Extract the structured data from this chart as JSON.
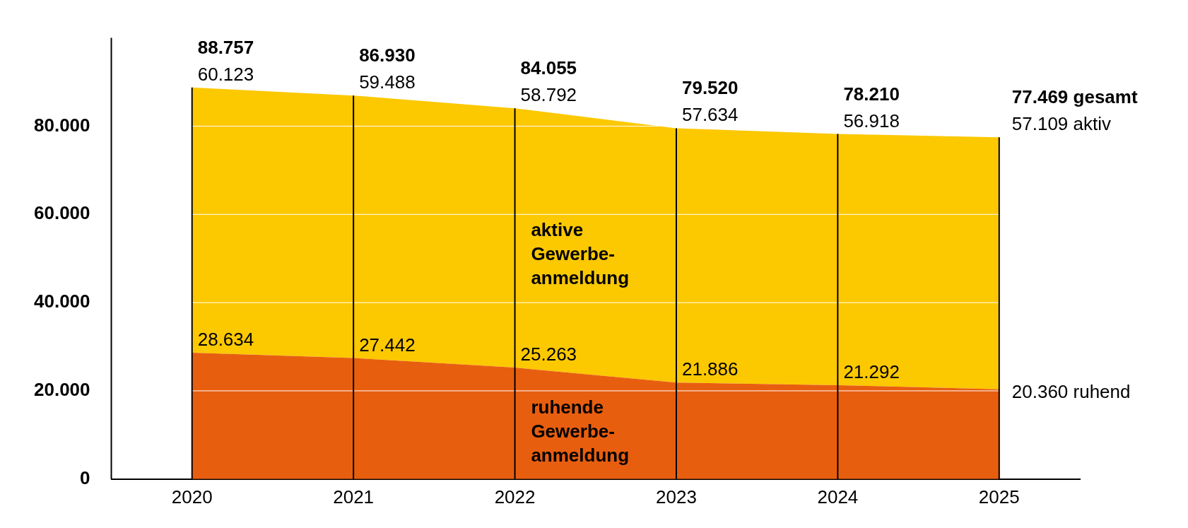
{
  "chart_data": {
    "type": "area",
    "stacked": true,
    "x": [
      2020,
      2021,
      2022,
      2023,
      2024,
      2025
    ],
    "xlim": [
      2019.5,
      2025.5
    ],
    "xticks": [
      2020,
      2021,
      2022,
      2023,
      2024,
      2025
    ],
    "ylim": [
      0,
      100000
    ],
    "yticks": [
      0,
      {
        "value": 20000,
        "label": "20.000"
      },
      {
        "value": 40000,
        "label": "40.000"
      },
      {
        "value": 60000,
        "label": "60.000"
      },
      {
        "value": 80000,
        "label": "80.000"
      }
    ],
    "grid": true,
    "legend": false,
    "series": [
      {
        "name": "ruhende Gewerbe-anmeldung",
        "color": "#e85e0f",
        "values": [
          28634,
          27442,
          25263,
          21886,
          21292,
          20360
        ],
        "value_labels": [
          "28.634",
          "27.442",
          "25.263",
          "21.886",
          "21.292",
          "20.360 ruhend"
        ]
      },
      {
        "name": "aktive Gewerbe-anmeldung",
        "color": "#fcc800",
        "values": [
          60123,
          59488,
          58792,
          57634,
          56918,
          57109
        ],
        "value_labels": [
          "60.123",
          "59.488",
          "58.792",
          "57.634",
          "56.918",
          "57.109 aktiv"
        ]
      }
    ],
    "totals": [
      "88.757",
      "86.930",
      "84.055",
      "79.520",
      "78.210",
      "77.469 gesamt"
    ]
  }
}
